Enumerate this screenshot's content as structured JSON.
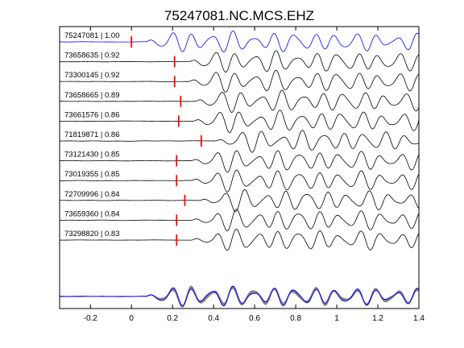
{
  "chart_data": {
    "type": "line",
    "title": "75247081.NC.MCS.EHZ",
    "xlabel": "",
    "ylabel": "",
    "xlim": [
      -0.35,
      1.4
    ],
    "x_ticks": [
      -0.2,
      0,
      0.2,
      0.4,
      0.6,
      0.8,
      1,
      1.2,
      1.4
    ],
    "x_tick_labels": [
      "-0.2",
      "0",
      "0.2",
      "0.4",
      "0.6",
      "0.8",
      "1",
      "1.2",
      "1.4"
    ],
    "grid": false,
    "colors": {
      "reference": "#0000ff",
      "trace": "#000000",
      "pick": "#ff0000",
      "stack": "#808080",
      "axes": "#000000"
    },
    "series": [
      {
        "label": "75247081 | 1.00",
        "event_id": "75247081",
        "correlation": 1.0,
        "pick_time": 0.0,
        "reference": true
      },
      {
        "label": "73658635 | 0.92",
        "event_id": "73658635",
        "correlation": 0.92,
        "pick_time": 0.21
      },
      {
        "label": "73300145 | 0.92",
        "event_id": "73300145",
        "correlation": 0.92,
        "pick_time": 0.21
      },
      {
        "label": "73658665 | 0.89",
        "event_id": "73658665",
        "correlation": 0.89,
        "pick_time": 0.24
      },
      {
        "label": "73661576 | 0.86",
        "event_id": "73661576",
        "correlation": 0.86,
        "pick_time": 0.23
      },
      {
        "label": "71819871 | 0.86",
        "event_id": "71819871",
        "correlation": 0.86,
        "pick_time": 0.34
      },
      {
        "label": "73121430 | 0.85",
        "event_id": "73121430",
        "correlation": 0.85,
        "pick_time": 0.22
      },
      {
        "label": "73019355 | 0.85",
        "event_id": "73019355",
        "correlation": 0.85,
        "pick_time": 0.22
      },
      {
        "label": "72709996 | 0.84",
        "event_id": "72709996",
        "correlation": 0.84,
        "pick_time": 0.26
      },
      {
        "label": "73659360 | 0.84",
        "event_id": "73659360",
        "correlation": 0.84,
        "pick_time": 0.22
      },
      {
        "label": "73298820 | 0.83",
        "event_id": "73298820",
        "correlation": 0.83,
        "pick_time": 0.22
      }
    ],
    "stack": {
      "shows_all_traces_overlaid": true,
      "reference_on_top": true
    }
  }
}
